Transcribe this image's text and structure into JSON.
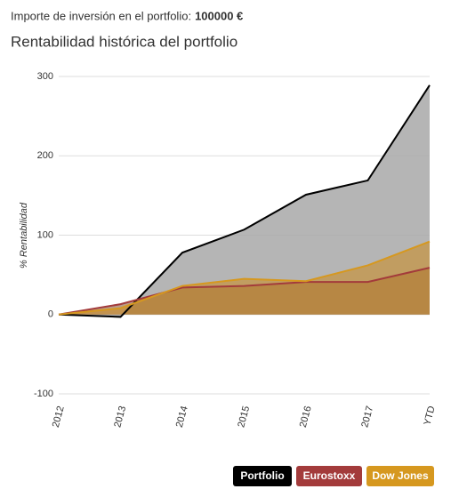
{
  "chart_data": {
    "type": "area",
    "investment_label": "Importe de inversión en el portfolio:",
    "investment_amount": "100000 €",
    "title": "Rentabilidad histórica del portfolio",
    "y_label": "% Rentabilidad",
    "categories": [
      "2012",
      "2013",
      "2014",
      "2015",
      "2016",
      "2017",
      "YTD"
    ],
    "series": [
      {
        "name": "Portfolio",
        "color": "#000000",
        "fill": "#a8a8a8",
        "values": [
          0,
          -3,
          78,
          107,
          151,
          169,
          289
        ]
      },
      {
        "name": "Eurostoxx",
        "color": "#a33b3b",
        "fill": "#8a5a3c",
        "values": [
          0,
          13,
          34,
          36,
          41,
          41,
          59
        ]
      },
      {
        "name": "Dow Jones",
        "color": "#d6981f",
        "fill": "#c98e2a",
        "values": [
          0,
          8,
          36,
          45,
          42,
          62,
          92
        ]
      }
    ],
    "ylim": [
      -100,
      300
    ],
    "yticks": [
      -100,
      0,
      100,
      200,
      300
    ],
    "grid": true,
    "legend": "bottom-right"
  }
}
